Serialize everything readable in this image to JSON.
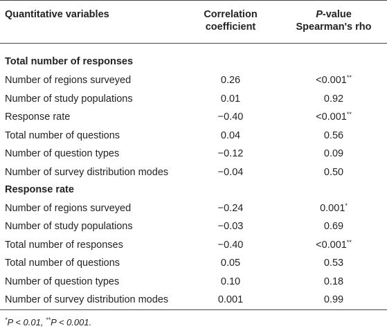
{
  "header": {
    "col1": "Quantitative variables",
    "col2_line1": "Correlation",
    "col2_line2": "coefficient",
    "col3_italic": "P",
    "col3_line1_rest": "-value",
    "col3_line2": "Spearman's rho"
  },
  "sections": [
    {
      "title": "Total number of responses",
      "rows": [
        {
          "label": "Number of regions surveyed",
          "coef": "0.26",
          "pval": "<0.001",
          "sig": "**"
        },
        {
          "label": "Number of study populations",
          "coef": "0.01",
          "pval": "0.92",
          "sig": ""
        },
        {
          "label": "Response rate",
          "coef": "−0.40",
          "pval": "<0.001",
          "sig": "**"
        },
        {
          "label": "Total number of questions",
          "coef": "0.04",
          "pval": "0.56",
          "sig": ""
        },
        {
          "label": "Number of question types",
          "coef": "−0.12",
          "pval": "0.09",
          "sig": ""
        },
        {
          "label": "Number of survey distribution modes",
          "coef": "−0.04",
          "pval": "0.50",
          "sig": ""
        }
      ]
    },
    {
      "title": "Response rate",
      "rows": [
        {
          "label": "Number of regions surveyed",
          "coef": "−0.24",
          "pval": "0.001",
          "sig": "*"
        },
        {
          "label": "Number of study populations",
          "coef": "−0.03",
          "pval": "0.69",
          "sig": ""
        },
        {
          "label": "Total number of responses",
          "coef": "−0.40",
          "pval": "<0.001",
          "sig": "**"
        },
        {
          "label": "Total number of questions",
          "coef": "0.05",
          "pval": "0.53",
          "sig": ""
        },
        {
          "label": "Number of question types",
          "coef": "0.10",
          "pval": "0.18",
          "sig": ""
        },
        {
          "label": "Number of survey distribution modes",
          "coef": "0.001",
          "pval": "0.99",
          "sig": ""
        }
      ]
    }
  ],
  "footnote": {
    "star1": "*",
    "text1": "P < 0.01, ",
    "star2": "**",
    "text2": "P < 0.001."
  }
}
